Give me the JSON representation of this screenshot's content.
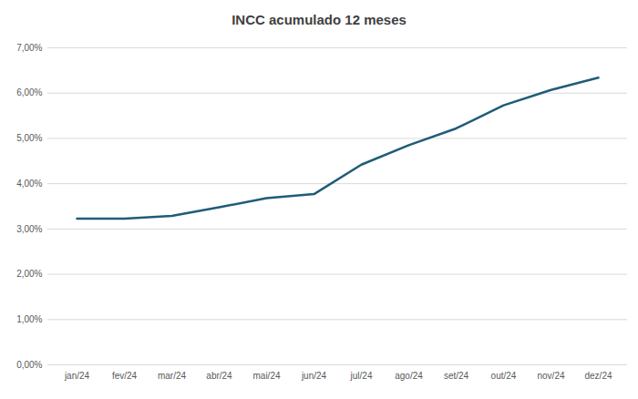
{
  "chart_data": {
    "type": "line",
    "title": "INCC acumulado 12 meses",
    "categories": [
      "jan/24",
      "fev/24",
      "mar/24",
      "abr/24",
      "mai/24",
      "jun/24",
      "jul/24",
      "ago/24",
      "set/24",
      "out/24",
      "nov/24",
      "dez/24"
    ],
    "values": [
      3.23,
      3.23,
      3.29,
      3.48,
      3.68,
      3.77,
      4.42,
      4.85,
      5.22,
      5.73,
      6.07,
      6.34
    ],
    "color": "#1f5c78",
    "ylim": [
      0,
      7
    ],
    "yticks": [
      {
        "value": 0,
        "label": "0,00%"
      },
      {
        "value": 1,
        "label": "1,00%"
      },
      {
        "value": 2,
        "label": "2,00%"
      },
      {
        "value": 3,
        "label": "3,00%"
      },
      {
        "value": 4,
        "label": "4,00%"
      },
      {
        "value": 5,
        "label": "5,00%"
      },
      {
        "value": 6,
        "label": "6,00%"
      },
      {
        "value": 7,
        "label": "7,00%"
      }
    ],
    "grid": true
  }
}
